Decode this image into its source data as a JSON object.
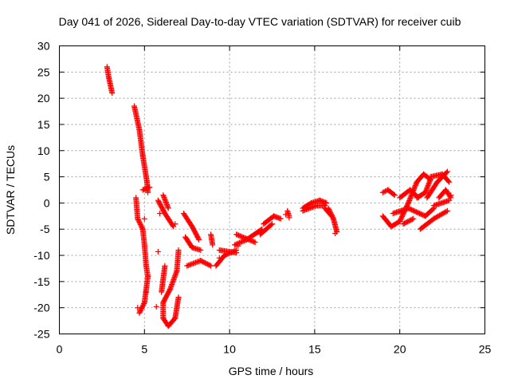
{
  "chart_data": {
    "type": "scatter",
    "title": "Day 041 of 2026, Sidereal Day-to-day VTEC variation (SDTVAR) for receiver cuib",
    "xlabel": "GPS time / hours",
    "ylabel": "SDTVAR / TECUs",
    "xlim": [
      0,
      25
    ],
    "ylim": [
      -25,
      30
    ],
    "xticks": [
      0,
      5,
      10,
      15,
      20,
      25
    ],
    "yticks": [
      30,
      25,
      20,
      15,
      10,
      5,
      0,
      -5,
      -10,
      -15,
      -20,
      -25
    ],
    "grid": true,
    "marker": "+",
    "color": "#ff0000",
    "segments": [
      {
        "x0": 2.8,
        "y0": 26,
        "x1": 2.9,
        "y1": 24
      },
      {
        "x0": 2.9,
        "y0": 24,
        "x1": 3.1,
        "y1": 21
      },
      {
        "x0": 4.4,
        "y0": 18.5,
        "x1": 4.7,
        "y1": 14
      },
      {
        "x0": 4.7,
        "y0": 14,
        "x1": 4.9,
        "y1": 9
      },
      {
        "x0": 4.9,
        "y0": 9,
        "x1": 5.15,
        "y1": 4
      },
      {
        "x0": 5.15,
        "y0": 4,
        "x1": 5.2,
        "y1": 2
      },
      {
        "x0": 4.9,
        "y0": 2.5,
        "x1": 5.3,
        "y1": 3
      },
      {
        "x0": 4.5,
        "y0": 1,
        "x1": 4.6,
        "y1": -3
      },
      {
        "x0": 4.6,
        "y0": -3,
        "x1": 4.9,
        "y1": -5
      },
      {
        "x0": 4.9,
        "y0": -5,
        "x1": 5.0,
        "y1": -8
      },
      {
        "x0": 5.0,
        "y0": -8,
        "x1": 5.1,
        "y1": -12
      },
      {
        "x0": 5.1,
        "y0": -12,
        "x1": 5.2,
        "y1": -14
      },
      {
        "x0": 5.2,
        "y0": -14,
        "x1": 5.0,
        "y1": -19
      },
      {
        "x0": 5.0,
        "y0": -19,
        "x1": 4.7,
        "y1": -21
      },
      {
        "x0": 6.1,
        "y0": 1.5,
        "x1": 6.4,
        "y1": -1
      },
      {
        "x0": 5.8,
        "y0": 0.5,
        "x1": 6.2,
        "y1": -2
      },
      {
        "x0": 6.2,
        "y0": -2,
        "x1": 6.7,
        "y1": -4.5
      },
      {
        "x0": 7.0,
        "y0": -9,
        "x1": 6.9,
        "y1": -13
      },
      {
        "x0": 6.9,
        "y0": -13,
        "x1": 6.5,
        "y1": -16.5
      },
      {
        "x0": 6.5,
        "y0": -16.5,
        "x1": 6.1,
        "y1": -19
      },
      {
        "x0": 6.1,
        "y0": -19,
        "x1": 6.1,
        "y1": -22
      },
      {
        "x0": 6.1,
        "y0": -22,
        "x1": 6.4,
        "y1": -23.5
      },
      {
        "x0": 6.4,
        "y0": -23.5,
        "x1": 6.8,
        "y1": -22
      },
      {
        "x0": 6.8,
        "y0": -22,
        "x1": 7.0,
        "y1": -18
      },
      {
        "x0": 6.2,
        "y0": -12,
        "x1": 6.0,
        "y1": -17
      },
      {
        "x0": 7.3,
        "y0": -2,
        "x1": 7.8,
        "y1": -4.5
      },
      {
        "x0": 7.8,
        "y0": -4.5,
        "x1": 8.2,
        "y1": -7
      },
      {
        "x0": 7.4,
        "y0": -6.5,
        "x1": 7.8,
        "y1": -8.5
      },
      {
        "x0": 7.8,
        "y0": -8.5,
        "x1": 8.3,
        "y1": -9
      },
      {
        "x0": 7.5,
        "y0": -12,
        "x1": 8.3,
        "y1": -11
      },
      {
        "x0": 8.3,
        "y0": -11,
        "x1": 8.9,
        "y1": -12
      },
      {
        "x0": 8.9,
        "y0": -6,
        "x1": 9.0,
        "y1": -8
      },
      {
        "x0": 9.2,
        "y0": -12,
        "x1": 9.7,
        "y1": -10
      },
      {
        "x0": 9.7,
        "y0": -10,
        "x1": 10.4,
        "y1": -9
      },
      {
        "x0": 9.4,
        "y0": -9,
        "x1": 10.4,
        "y1": -9.5
      },
      {
        "x0": 10.3,
        "y0": -8,
        "x1": 11.0,
        "y1": -7
      },
      {
        "x0": 11.0,
        "y0": -7,
        "x1": 11.9,
        "y1": -5
      },
      {
        "x0": 10.4,
        "y0": -6,
        "x1": 11.5,
        "y1": -7.5
      },
      {
        "x0": 12.0,
        "y0": -4,
        "x1": 12.6,
        "y1": -2.5
      },
      {
        "x0": 12.6,
        "y0": -2.5,
        "x1": 13.0,
        "y1": -3
      },
      {
        "x0": 11.8,
        "y0": -6,
        "x1": 12.5,
        "y1": -4
      },
      {
        "x0": 13.4,
        "y0": -1.5,
        "x1": 13.5,
        "y1": -2.5
      },
      {
        "x0": 14.3,
        "y0": -1,
        "x1": 14.8,
        "y1": 0
      },
      {
        "x0": 14.8,
        "y0": 0,
        "x1": 15.3,
        "y1": 0.5
      },
      {
        "x0": 15.3,
        "y0": 0.5,
        "x1": 15.7,
        "y1": 0
      },
      {
        "x0": 14.3,
        "y0": -1.5,
        "x1": 15.1,
        "y1": -0.5
      },
      {
        "x0": 15.1,
        "y0": -0.5,
        "x1": 15.6,
        "y1": -0.5
      },
      {
        "x0": 15.8,
        "y0": -1,
        "x1": 16.1,
        "y1": -3
      },
      {
        "x0": 16.1,
        "y0": -3,
        "x1": 16.3,
        "y1": -5.5
      },
      {
        "x0": 15.6,
        "y0": -1,
        "x1": 16.0,
        "y1": -2.5
      },
      {
        "x0": 19.0,
        "y0": 2,
        "x1": 19.3,
        "y1": 2.5
      },
      {
        "x0": 19.3,
        "y0": 2.5,
        "x1": 19.7,
        "y1": 1.5
      },
      {
        "x0": 19.0,
        "y0": -2.5,
        "x1": 19.5,
        "y1": -4.5
      },
      {
        "x0": 19.5,
        "y0": -4.5,
        "x1": 20.0,
        "y1": -3.5
      },
      {
        "x0": 20.0,
        "y0": -3.5,
        "x1": 20.5,
        "y1": 0
      },
      {
        "x0": 20.5,
        "y0": 0,
        "x1": 21.0,
        "y1": 4
      },
      {
        "x0": 21.0,
        "y0": 4,
        "x1": 21.4,
        "y1": 5.5
      },
      {
        "x0": 21.4,
        "y0": 5.5,
        "x1": 21.8,
        "y1": 4.5
      },
      {
        "x0": 21.8,
        "y0": 4.5,
        "x1": 21.5,
        "y1": 2
      },
      {
        "x0": 21.5,
        "y0": 2,
        "x1": 21.0,
        "y1": 1
      },
      {
        "x0": 20.0,
        "y0": 1,
        "x1": 20.6,
        "y1": 2.5
      },
      {
        "x0": 20.6,
        "y0": 2.5,
        "x1": 21.1,
        "y1": 1
      },
      {
        "x0": 19.6,
        "y0": -2,
        "x1": 20.5,
        "y1": -1
      },
      {
        "x0": 20.5,
        "y0": -1,
        "x1": 21.5,
        "y1": -2.5
      },
      {
        "x0": 21.5,
        "y0": -2.5,
        "x1": 22.0,
        "y1": -1
      },
      {
        "x0": 21.2,
        "y0": -5,
        "x1": 22.0,
        "y1": -3
      },
      {
        "x0": 22.0,
        "y0": -3,
        "x1": 22.8,
        "y1": -1.5
      },
      {
        "x0": 21.6,
        "y0": 1,
        "x1": 22.2,
        "y1": 4
      },
      {
        "x0": 22.2,
        "y0": 4,
        "x1": 22.8,
        "y1": 6
      },
      {
        "x0": 21.8,
        "y0": 5,
        "x1": 22.5,
        "y1": 5.5
      },
      {
        "x0": 22.5,
        "y0": 5.5,
        "x1": 22.9,
        "y1": 4
      },
      {
        "x0": 22.3,
        "y0": 1,
        "x1": 22.7,
        "y1": 2.5
      },
      {
        "x0": 22.7,
        "y0": 2.5,
        "x1": 23.0,
        "y1": 1
      },
      {
        "x0": 22.0,
        "y0": -0.5,
        "x1": 22.9,
        "y1": 0.5
      },
      {
        "x0": 20.2,
        "y0": -4,
        "x1": 20.8,
        "y1": -3
      }
    ],
    "points": [
      {
        "x": 5.0,
        "y": -3
      },
      {
        "x": 5.8,
        "y": -9.3
      },
      {
        "x": 5.7,
        "y": -19.8
      },
      {
        "x": 5.1,
        "y": -17
      },
      {
        "x": 6.8,
        "y": -4
      },
      {
        "x": 9.4,
        "y": -10.5
      },
      {
        "x": 10.5,
        "y": -8.2
      },
      {
        "x": 13.3,
        "y": -2.2
      },
      {
        "x": 13.5,
        "y": -2.8
      },
      {
        "x": 16.2,
        "y": -5.8
      },
      {
        "x": 23.0,
        "y": 1.5
      },
      {
        "x": 20.1,
        "y": -1.8
      },
      {
        "x": 5.9,
        "y": -2
      },
      {
        "x": 4.6,
        "y": -20
      }
    ]
  }
}
